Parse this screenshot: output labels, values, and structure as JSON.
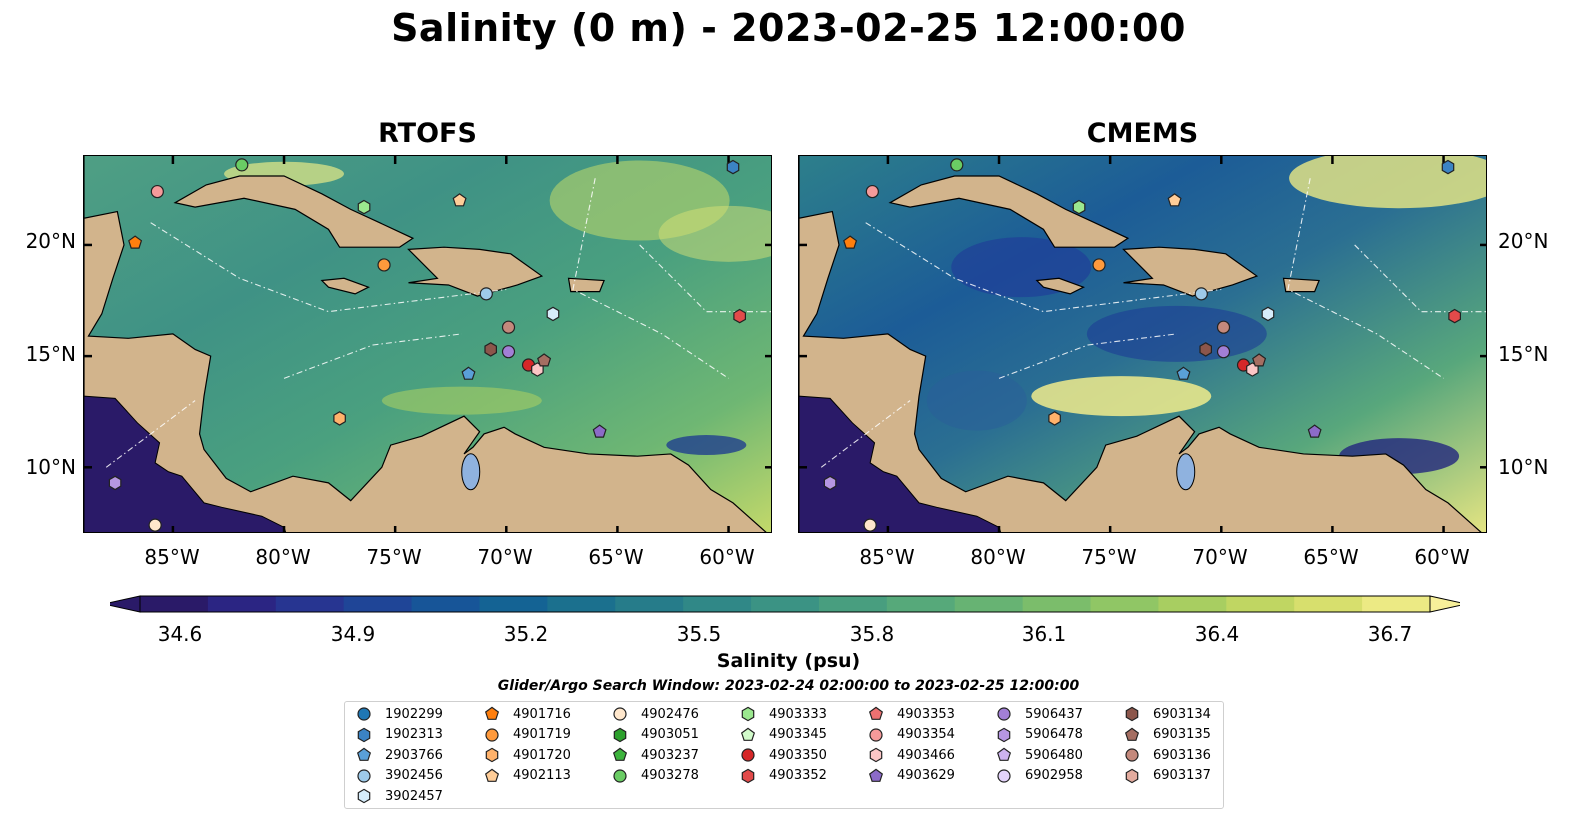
{
  "title": "Salinity (0 m) - 2023-02-25 12:00:00",
  "panels": [
    {
      "title": "RTOFS"
    },
    {
      "title": "CMEMS"
    }
  ],
  "lat_ticks": [
    "20°N",
    "15°N",
    "10°N"
  ],
  "lon_ticks": [
    "85°W",
    "80°W",
    "75°W",
    "70°W",
    "65°W",
    "60°W"
  ],
  "extent": {
    "lon": [
      -89,
      -58
    ],
    "lat": [
      7,
      24
    ]
  },
  "colorbar": {
    "label": "Salinity (psu)",
    "ticks": [
      "34.6",
      "34.9",
      "35.2",
      "35.5",
      "35.8",
      "36.1",
      "36.4",
      "36.7"
    ],
    "range": [
      34.6,
      36.7
    ],
    "colors": [
      "#2a1a68",
      "#2b2583",
      "#273591",
      "#1f4597",
      "#175598",
      "#146394",
      "#1b708e",
      "#267c8a",
      "#308887",
      "#3b9384",
      "#489e7f",
      "#56a97a",
      "#67b373",
      "#7bbd6b",
      "#90c665",
      "#a8ce61",
      "#c0d662",
      "#d7df6d",
      "#ecea84"
    ]
  },
  "search_window": "Glider/Argo Search Window: 2023-02-24 02:00:00 to 2023-02-25 12:00:00",
  "legend": [
    {
      "id": "1902299",
      "shape": "circle",
      "color": "#1f77b4"
    },
    {
      "id": "1902313",
      "shape": "hexagon",
      "color": "#3b83c4"
    },
    {
      "id": "2903766",
      "shape": "pentagon",
      "color": "#5aa0d8"
    },
    {
      "id": "3902456",
      "shape": "circle",
      "color": "#9ecae9"
    },
    {
      "id": "3902457",
      "shape": "hexagon",
      "color": "#d6ecfa"
    },
    {
      "id": "4901716",
      "shape": "pentagon",
      "color": "#ff7f0e"
    },
    {
      "id": "4901719",
      "shape": "circle",
      "color": "#ff9a3c"
    },
    {
      "id": "4901720",
      "shape": "hexagon",
      "color": "#ffb26b"
    },
    {
      "id": "4902113",
      "shape": "pentagon",
      "color": "#ffcd98"
    },
    {
      "id": "4902476",
      "shape": "circle",
      "color": "#ffe7cc"
    },
    {
      "id": "4903051",
      "shape": "hexagon",
      "color": "#2ca02c"
    },
    {
      "id": "4903237",
      "shape": "pentagon",
      "color": "#3cb33c"
    },
    {
      "id": "4903278",
      "shape": "circle",
      "color": "#6acc64"
    },
    {
      "id": "4903333",
      "shape": "hexagon",
      "color": "#9be88f"
    },
    {
      "id": "4903345",
      "shape": "pentagon",
      "color": "#d2fbcb"
    },
    {
      "id": "4903350",
      "shape": "circle",
      "color": "#d62728"
    },
    {
      "id": "4903352",
      "shape": "hexagon",
      "color": "#e24a4a"
    },
    {
      "id": "4903353",
      "shape": "pentagon",
      "color": "#ee7171"
    },
    {
      "id": "4903354",
      "shape": "circle",
      "color": "#f59a9a"
    },
    {
      "id": "4903466",
      "shape": "hexagon",
      "color": "#fbc6c6"
    },
    {
      "id": "4903629",
      "shape": "pentagon",
      "color": "#8c6bc8"
    },
    {
      "id": "5906437",
      "shape": "circle",
      "color": "#a27fd6"
    },
    {
      "id": "5906478",
      "shape": "hexagon",
      "color": "#b697e2"
    },
    {
      "id": "5906480",
      "shape": "pentagon",
      "color": "#cdb3ee"
    },
    {
      "id": "6902958",
      "shape": "circle",
      "color": "#e3d3fa"
    },
    {
      "id": "6903134",
      "shape": "hexagon",
      "color": "#8c564b"
    },
    {
      "id": "6903135",
      "shape": "pentagon",
      "color": "#a56e62"
    },
    {
      "id": "6903136",
      "shape": "circle",
      "color": "#c4897c"
    },
    {
      "id": "6903137",
      "shape": "hexagon",
      "color": "#e3ab9e"
    }
  ],
  "floats": [
    {
      "id": "4902476",
      "lon": -85.8,
      "lat": 7.4
    },
    {
      "id": "5906478",
      "lon": -87.6,
      "lat": 9.3
    },
    {
      "id": "4903354",
      "lon": -85.7,
      "lat": 22.4
    },
    {
      "id": "4901716",
      "lon": -86.7,
      "lat": 20.1
    },
    {
      "id": "4903278",
      "lon": -81.9,
      "lat": 23.6
    },
    {
      "id": "4903333",
      "lon": -76.4,
      "lat": 21.7
    },
    {
      "id": "4902113",
      "lon": -72.1,
      "lat": 22.0
    },
    {
      "id": "4901719",
      "lon": -75.5,
      "lat": 19.1
    },
    {
      "id": "3902456",
      "lon": -70.9,
      "lat": 17.8
    },
    {
      "id": "3902457",
      "lon": -67.9,
      "lat": 16.9
    },
    {
      "id": "6903136",
      "lon": -69.9,
      "lat": 16.3
    },
    {
      "id": "6903134",
      "lon": -70.7,
      "lat": 15.3
    },
    {
      "id": "5906437",
      "lon": -69.9,
      "lat": 15.2
    },
    {
      "id": "4903350",
      "lon": -69.0,
      "lat": 14.6
    },
    {
      "id": "4903466",
      "lon": -68.6,
      "lat": 14.4
    },
    {
      "id": "6903135",
      "lon": -68.3,
      "lat": 14.8
    },
    {
      "id": "2903766",
      "lon": -71.7,
      "lat": 14.2
    },
    {
      "id": "4901720",
      "lon": -77.5,
      "lat": 12.2
    },
    {
      "id": "4903629",
      "lon": -65.8,
      "lat": 11.6
    },
    {
      "id": "4903352",
      "lon": -59.5,
      "lat": 16.8
    },
    {
      "id": "1902313",
      "lon": -59.8,
      "lat": 23.5
    }
  ]
}
